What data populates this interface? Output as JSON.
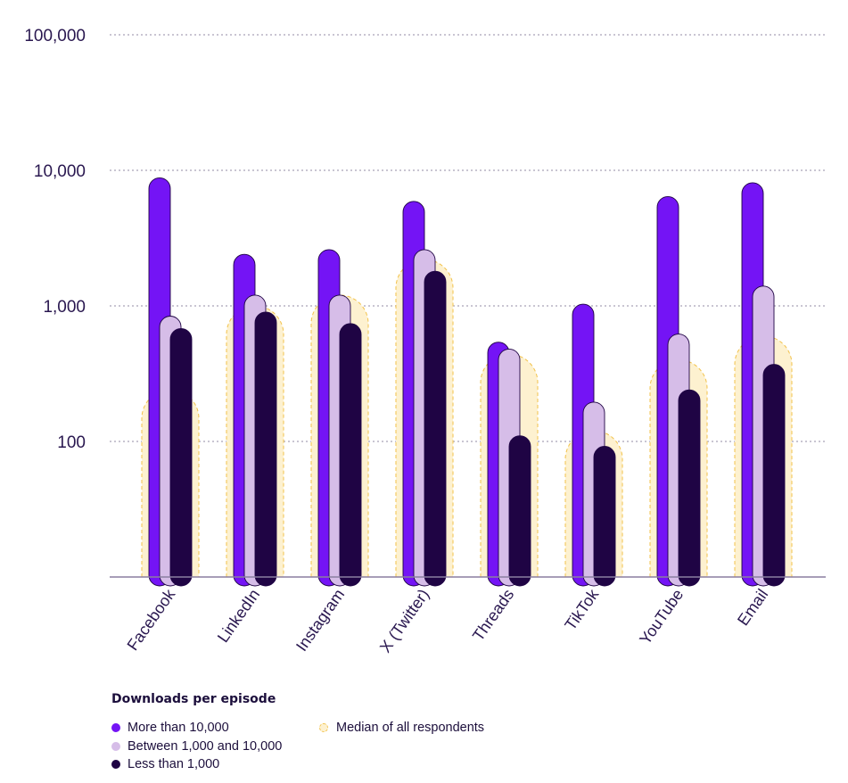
{
  "chart_data": {
    "type": "bar",
    "y_scale": "log",
    "ylim": [
      10,
      100000
    ],
    "yticks": [
      "100",
      "1,000",
      "10,000",
      "100,000"
    ],
    "ytick_values": [
      100,
      1000,
      10000,
      100000
    ],
    "grid": true,
    "categories": [
      "Facebook",
      "LinkedIn",
      "Instagram",
      "X (Twitter)",
      "Threads",
      "TikTok",
      "YouTube",
      "Email"
    ],
    "legend_title": "Downloads per episode",
    "legend_position": "bottom-left",
    "series": [
      {
        "name": "More than 10,000",
        "color": "#7414f5",
        "values": [
          8800,
          2400,
          2600,
          5900,
          540,
          1030,
          6400,
          8100
        ]
      },
      {
        "name": "Between 1,000 and 10,000",
        "color": "#d6bde8",
        "values": [
          840,
          1200,
          1200,
          2600,
          480,
          195,
          620,
          1400
        ]
      },
      {
        "name": "Less than 1,000",
        "color": "#1f0444",
        "values": [
          680,
          900,
          740,
          1800,
          110,
          92,
          240,
          370
        ]
      }
    ],
    "median": {
      "name": "Median of all respondents",
      "color": "#fdf1d0",
      "border_color": "#f2c24a",
      "values": [
        240,
        1000,
        1200,
        2200,
        440,
        120,
        400,
        600
      ]
    }
  }
}
